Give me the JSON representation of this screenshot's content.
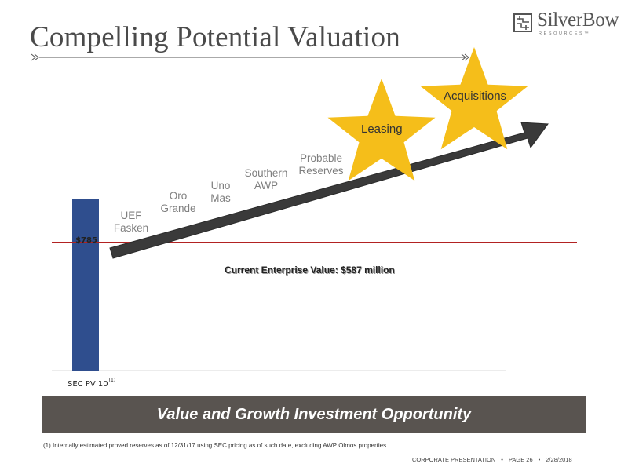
{
  "title": "Compelling Potential Valuation",
  "logo": {
    "name": "SilverBow",
    "subtitle": "RESOURCES™"
  },
  "chart_data": {
    "type": "bar",
    "categories": [
      "SEC PV 10"
    ],
    "category_footnote": "(1)",
    "values": [
      785
    ],
    "value_labels": [
      "$785"
    ],
    "bar_color": "#2F4E8E",
    "reference_line": {
      "value": 587,
      "label": "Current Enterprise Value: $587 million",
      "color": "#B22222"
    },
    "growth_arrow": {
      "color": "#3a3a3a",
      "steps": [
        [
          "UEF",
          "Fasken"
        ],
        [
          "Oro",
          "Grande"
        ],
        [
          "Uno",
          "Mas"
        ],
        [
          "Southern",
          "AWP"
        ],
        [
          "Probable",
          "Reserves"
        ]
      ],
      "stars": [
        "Leasing",
        "Acquisitions"
      ],
      "star_color": "#F5BE1A"
    },
    "ylim": [
      0,
      900
    ]
  },
  "banner": {
    "text": "Value and Growth Investment Opportunity"
  },
  "footnote": "(1)   Internally estimated proved reserves as of 12/31/17 using SEC pricing as of such date, excluding AWP Olmos properties",
  "footer": {
    "section": "CORPORATE PRESENTATION",
    "page": "PAGE 26",
    "date": "2/28/2018",
    "separator": "•"
  }
}
